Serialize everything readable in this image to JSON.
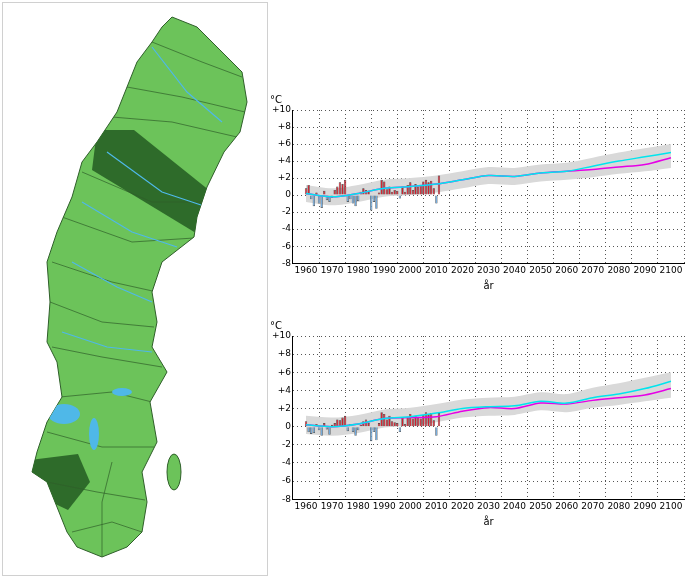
{
  "chart_data": [
    {
      "type": "bar",
      "ylabel": "°C",
      "xlabel": "år",
      "xlim": [
        1960,
        2100
      ],
      "xticks": [
        1960,
        1970,
        1980,
        1990,
        2000,
        2010,
        2020,
        2030,
        2040,
        2050,
        2060,
        2070,
        2080,
        2090,
        2100
      ],
      "ylim": [
        -8,
        10
      ],
      "yticks": [
        -8,
        -6,
        -4,
        -2,
        0,
        {
          "value": 2,
          "label": "+2"
        },
        {
          "value": 4,
          "label": "+4"
        },
        {
          "value": 6,
          "label": "+6"
        },
        {
          "value": 8,
          "label": "+8"
        },
        {
          "value": 10,
          "label": "+10"
        }
      ],
      "grid": true,
      "series": [
        {
          "type": "band",
          "color": "#d9d9d9",
          "x": [
            1960,
            1970,
            1980,
            1990,
            2000,
            2010,
            2020,
            2030,
            2040,
            2050,
            2060,
            2070,
            2080,
            2090,
            2100
          ],
          "low": [
            -0.8,
            -1.2,
            -0.8,
            -0.2,
            0,
            0.3,
            0.8,
            1.3,
            1.2,
            1.6,
            1.8,
            2.1,
            2.5,
            2.8,
            3.2
          ],
          "high": [
            1.2,
            0.8,
            1.2,
            1.8,
            2.0,
            2.3,
            2.8,
            3.3,
            3.2,
            3.6,
            3.8,
            4.4,
            5.0,
            5.5,
            6.0
          ]
        },
        {
          "type": "bar",
          "x": [
            1960,
            1961,
            1962,
            1963,
            1964,
            1965,
            1966,
            1967,
            1968,
            1969,
            1970,
            1971,
            1972,
            1973,
            1974,
            1975,
            1976,
            1977,
            1978,
            1979,
            1980,
            1981,
            1982,
            1983,
            1984,
            1985,
            1986,
            1987,
            1988,
            1989,
            1990,
            1991,
            1992,
            1993,
            1994,
            1995,
            1996,
            1997,
            1998,
            1999,
            2000,
            2001,
            2002,
            2003,
            2004,
            2005,
            2006,
            2007,
            2008,
            2009,
            2010,
            2011
          ],
          "values": [
            0.8,
            1.2,
            -0.5,
            -1.3,
            0.3,
            -1.0,
            -1.5,
            0.5,
            -0.6,
            -0.8,
            -0.3,
            0.6,
            1.0,
            1.5,
            1.3,
            1.8,
            -0.8,
            -0.5,
            -1.0,
            -1.3,
            -0.7,
            0.4,
            0.8,
            0.6,
            0.5,
            -1.8,
            -0.8,
            -1.6,
            0.3,
            1.8,
            1.6,
            0.7,
            1.0,
            0.4,
            0.6,
            0.5,
            -0.4,
            1.0,
            0.4,
            1.2,
            1.5,
            0.6,
            1.3,
            1.0,
            1.2,
            1.6,
            1.8,
            1.5,
            1.7,
            0.8,
            -1.0,
            2.3
          ],
          "colors": [
            "#d0202e",
            "#d0202e",
            "#6fa8dc",
            "#6fa8dc",
            "#d0202e",
            "#6fa8dc",
            "#6fa8dc",
            "#d0202e",
            "#6fa8dc",
            "#6fa8dc",
            "#6fa8dc",
            "#d0202e",
            "#d0202e",
            "#d0202e",
            "#d0202e",
            "#d0202e",
            "#6fa8dc",
            "#6fa8dc",
            "#6fa8dc",
            "#6fa8dc",
            "#6fa8dc",
            "#d0202e",
            "#d0202e",
            "#d0202e",
            "#d0202e",
            "#6fa8dc",
            "#6fa8dc",
            "#6fa8dc",
            "#d0202e",
            "#d0202e",
            "#d0202e",
            "#d0202e",
            "#d0202e",
            "#d0202e",
            "#d0202e",
            "#d0202e",
            "#6fa8dc",
            "#d0202e",
            "#d0202e",
            "#d0202e",
            "#d0202e",
            "#d0202e",
            "#d0202e",
            "#d0202e",
            "#d0202e",
            "#d0202e",
            "#d0202e",
            "#d0202e",
            "#d0202e",
            "#d0202e",
            "#6fa8dc",
            "#d0202e"
          ]
        },
        {
          "type": "line",
          "color": "#00e5ee",
          "x": [
            1960,
            1970,
            1980,
            1990,
            2000,
            2010,
            2020,
            2030,
            2040,
            2050,
            2060,
            2070,
            2080,
            2090,
            2100
          ],
          "values": [
            0.2,
            -0.2,
            0.2,
            0.8,
            1.0,
            1.3,
            1.8,
            2.3,
            2.2,
            2.6,
            2.8,
            3.4,
            4.0,
            4.5,
            5.0
          ]
        },
        {
          "type": "line",
          "color": "#e600e6",
          "x": [
            1960,
            1970,
            1980,
            1990,
            2000,
            2010,
            2020,
            2030,
            2040,
            2050,
            2060,
            2070,
            2080,
            2090,
            2100
          ],
          "values": [
            0.2,
            -0.2,
            0.2,
            0.8,
            1.0,
            1.3,
            1.8,
            2.3,
            2.2,
            2.6,
            2.8,
            3.0,
            3.3,
            3.6,
            4.4
          ]
        }
      ]
    },
    {
      "type": "bar",
      "ylabel": "°C",
      "xlabel": "år",
      "xlim": [
        1960,
        2100
      ],
      "xticks": [
        1960,
        1970,
        1980,
        1990,
        2000,
        2010,
        2020,
        2030,
        2040,
        2050,
        2060,
        2070,
        2080,
        2090,
        2100
      ],
      "ylim": [
        -8,
        10
      ],
      "yticks": [
        -8,
        -6,
        -4,
        -2,
        0,
        {
          "value": 2,
          "label": "+2"
        },
        {
          "value": 4,
          "label": "+4"
        },
        {
          "value": 6,
          "label": "+6"
        },
        {
          "value": 8,
          "label": "+8"
        },
        {
          "value": 10,
          "label": "+10"
        }
      ],
      "grid": true,
      "series": [
        {
          "type": "band",
          "color": "#d9d9d9",
          "x": [
            1960,
            1970,
            1980,
            1990,
            2000,
            2010,
            2020,
            2030,
            2040,
            2050,
            2060,
            2070,
            2080,
            2090,
            2100
          ],
          "low": [
            -0.8,
            -1.0,
            -0.7,
            -0.1,
            0.1,
            0.5,
            1.0,
            1.2,
            1.3,
            1.8,
            1.6,
            2.1,
            2.4,
            2.8,
            3.2
          ],
          "high": [
            1.2,
            1.0,
            1.3,
            1.9,
            2.1,
            2.5,
            3.0,
            3.2,
            3.3,
            3.8,
            3.6,
            4.3,
            4.8,
            5.4,
            6.0
          ]
        },
        {
          "type": "bar",
          "x": [
            1960,
            1961,
            1962,
            1963,
            1964,
            1965,
            1966,
            1967,
            1968,
            1969,
            1970,
            1971,
            1972,
            1973,
            1974,
            1975,
            1976,
            1977,
            1978,
            1979,
            1980,
            1981,
            1982,
            1983,
            1984,
            1985,
            1986,
            1987,
            1988,
            1989,
            1990,
            1991,
            1992,
            1993,
            1994,
            1995,
            1996,
            1997,
            1998,
            1999,
            2000,
            2001,
            2002,
            2003,
            2004,
            2005,
            2006,
            2007,
            2008,
            2009,
            2010,
            2011
          ],
          "values": [
            0.6,
            -0.6,
            -0.8,
            -0.7,
            0.3,
            -0.4,
            -1.0,
            0.4,
            -0.3,
            -0.9,
            0.2,
            0.4,
            0.8,
            0.7,
            1.0,
            1.2,
            -0.5,
            0.3,
            -0.6,
            -1.0,
            -0.4,
            0.2,
            0.6,
            0.8,
            0.4,
            -1.6,
            -0.6,
            -1.5,
            0.4,
            1.6,
            1.4,
            0.8,
            1.2,
            0.6,
            0.5,
            0.4,
            -0.6,
            1.0,
            0.3,
            1.1,
            1.4,
            0.9,
            1.2,
            1.1,
            0.9,
            1.3,
            1.6,
            1.4,
            1.5,
            0.7,
            -1.0,
            1.5
          ],
          "colors": [
            "#d0202e",
            "#6fa8dc",
            "#6fa8dc",
            "#6fa8dc",
            "#d0202e",
            "#6fa8dc",
            "#6fa8dc",
            "#d0202e",
            "#6fa8dc",
            "#6fa8dc",
            "#d0202e",
            "#d0202e",
            "#d0202e",
            "#d0202e",
            "#d0202e",
            "#d0202e",
            "#6fa8dc",
            "#d0202e",
            "#6fa8dc",
            "#6fa8dc",
            "#6fa8dc",
            "#d0202e",
            "#d0202e",
            "#d0202e",
            "#d0202e",
            "#6fa8dc",
            "#6fa8dc",
            "#6fa8dc",
            "#d0202e",
            "#d0202e",
            "#d0202e",
            "#d0202e",
            "#d0202e",
            "#d0202e",
            "#d0202e",
            "#d0202e",
            "#6fa8dc",
            "#d0202e",
            "#d0202e",
            "#d0202e",
            "#d0202e",
            "#d0202e",
            "#d0202e",
            "#d0202e",
            "#d0202e",
            "#d0202e",
            "#d0202e",
            "#d0202e",
            "#d0202e",
            "#d0202e",
            "#6fa8dc",
            "#d0202e"
          ]
        },
        {
          "type": "line",
          "color": "#00e5ee",
          "x": [
            1960,
            1970,
            1980,
            1990,
            2000,
            2010,
            2020,
            2030,
            2040,
            2050,
            2060,
            2070,
            2080,
            2090,
            2100
          ],
          "values": [
            0.2,
            0,
            0.3,
            0.9,
            1.1,
            1.5,
            2.0,
            2.2,
            2.3,
            2.8,
            2.6,
            3.2,
            3.6,
            4.2,
            5.0
          ]
        },
        {
          "type": "line",
          "color": "#e600e6",
          "x": [
            1960,
            1970,
            1980,
            1990,
            2000,
            2010,
            2020,
            2030,
            2040,
            2050,
            2060,
            2070,
            2080,
            2090,
            2100
          ],
          "values": [
            0.2,
            0,
            0.3,
            0.9,
            1.0,
            1.1,
            1.7,
            2.1,
            2.0,
            2.6,
            2.5,
            2.9,
            3.2,
            3.5,
            4.2
          ]
        }
      ]
    }
  ]
}
